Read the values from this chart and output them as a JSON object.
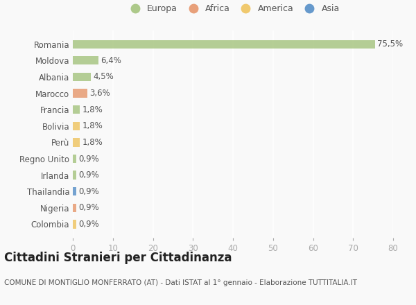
{
  "categories": [
    "Romania",
    "Moldova",
    "Albania",
    "Marocco",
    "Francia",
    "Bolivia",
    "Perù",
    "Regno Unito",
    "Irlanda",
    "Thailandia",
    "Nigeria",
    "Colombia"
  ],
  "values": [
    75.5,
    6.4,
    4.5,
    3.6,
    1.8,
    1.8,
    1.8,
    0.9,
    0.9,
    0.9,
    0.9,
    0.9
  ],
  "continents": [
    "Europa",
    "Europa",
    "Europa",
    "Africa",
    "Europa",
    "America",
    "America",
    "Europa",
    "Europa",
    "Asia",
    "Africa",
    "America"
  ],
  "continent_colors": {
    "Europa": "#adc98a",
    "Africa": "#e8a07a",
    "America": "#f0c96e",
    "Asia": "#6699cc"
  },
  "legend_order": [
    "Europa",
    "Africa",
    "America",
    "Asia"
  ],
  "xlim": [
    0,
    80
  ],
  "xticks": [
    0,
    10,
    20,
    30,
    40,
    50,
    60,
    70,
    80
  ],
  "title": "Cittadini Stranieri per Cittadinanza",
  "subtitle": "COMUNE DI MONTIGLIO MONFERRATO (AT) - Dati ISTAT al 1° gennaio - Elaborazione TUTTITALIA.IT",
  "background_color": "#f9f9f9",
  "grid_color": "#ffffff",
  "bar_value_color": "#555555",
  "ytick_color": "#555555",
  "xtick_color": "#aaaaaa",
  "label_fontsize": 8.5,
  "title_fontsize": 12,
  "subtitle_fontsize": 7.5
}
